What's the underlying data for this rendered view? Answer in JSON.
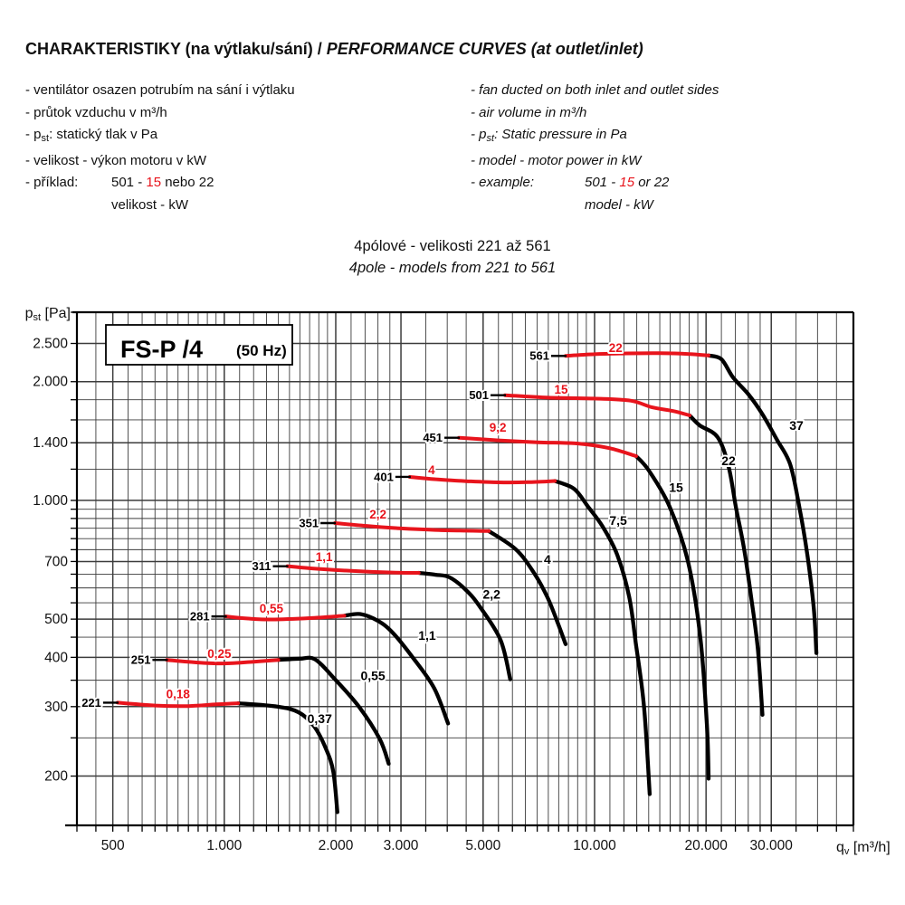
{
  "header": {
    "title_cz": "CHARAKTERISTIKY (na výtlaku/sání)",
    "title_sep": " / ",
    "title_en": "PERFORMANCE CURVES (at outlet/inlet)"
  },
  "notes": {
    "cz": {
      "items": [
        {
          "text": "- ventilátor osazen potrubím na sání i výtlaku"
        },
        {
          "text": "- průtok vzduchu v m³/h"
        },
        {
          "pre": "- p",
          "sub": "st",
          "post": ": statický tlak v Pa"
        },
        {
          "text": "- velikost - výkon motoru v kW"
        }
      ],
      "example": {
        "label": "- příklad:",
        "pre": "501 - ",
        "red": "15",
        "post": " nebo 22",
        "line2": "velikost - kW"
      }
    },
    "en": {
      "items": [
        {
          "text": "- fan ducted on both inlet and outlet sides"
        },
        {
          "text": "- air volume in m³/h"
        },
        {
          "pre": "- p",
          "sub": "st",
          "post": ": Static pressure in Pa"
        },
        {
          "text": "- model - motor power in kW"
        }
      ],
      "example": {
        "label": "- example:",
        "pre": "501 - ",
        "red": "15",
        "post": " or 22",
        "line2": "model - kW"
      }
    }
  },
  "subtitle": {
    "cz": "4pólové - velikosti 221 až 561",
    "en": "4pole - models from 221 to 561"
  },
  "chart_data": {
    "type": "line",
    "title_box": {
      "main": "FS-P /4",
      "sub": "(50 Hz)"
    },
    "colors": {
      "red": "#e8141c",
      "black": "#000000",
      "grid": "#3c3c3c"
    },
    "x_axis": {
      "label_pre": "q",
      "label_sub": "v",
      "label_post": " [m³/h]",
      "range": [
        400,
        50000
      ],
      "ticks": [
        {
          "v": 500,
          "t": "500"
        },
        {
          "v": 1000,
          "t": "1.000"
        },
        {
          "v": 2000,
          "t": "2.000"
        },
        {
          "v": 3000,
          "t": "3.000"
        },
        {
          "v": 5000,
          "t": "5.000"
        },
        {
          "v": 10000,
          "t": "10.000"
        },
        {
          "v": 20000,
          "t": "20.000"
        },
        {
          "v": 30000,
          "t": "30.000"
        }
      ],
      "grid": [
        400,
        450,
        500,
        550,
        600,
        650,
        700,
        750,
        800,
        850,
        900,
        950,
        1000,
        1100,
        1200,
        1300,
        1400,
        1500,
        1600,
        1700,
        1800,
        1900,
        2000,
        2200,
        2400,
        2600,
        2800,
        3000,
        3500,
        4000,
        4500,
        5000,
        5500,
        6000,
        6500,
        7000,
        7500,
        8000,
        8500,
        9000,
        9500,
        10000,
        11000,
        12000,
        13000,
        14000,
        15000,
        16000,
        17000,
        18000,
        19000,
        20000,
        22000,
        24000,
        26000,
        28000,
        30000,
        35000,
        40000,
        45000,
        50000
      ]
    },
    "y_axis": {
      "label_pre": "p",
      "label_sub": "st",
      "label_post": " [Pa]",
      "range": [
        150,
        3000
      ],
      "ticks": [
        {
          "v": 200,
          "t": "200"
        },
        {
          "v": 300,
          "t": "300"
        },
        {
          "v": 400,
          "t": "400"
        },
        {
          "v": 500,
          "t": "500"
        },
        {
          "v": 700,
          "t": "700"
        },
        {
          "v": 1000,
          "t": "1.000"
        },
        {
          "v": 1400,
          "t": "1.400"
        },
        {
          "v": 2000,
          "t": "2.000"
        },
        {
          "v": 2500,
          "t": "2.500"
        }
      ],
      "grid": [
        150,
        200,
        250,
        300,
        350,
        400,
        450,
        500,
        550,
        600,
        650,
        700,
        750,
        800,
        850,
        900,
        950,
        1000,
        1200,
        1400,
        1600,
        1800,
        2000,
        2500,
        3000
      ]
    },
    "series": [
      {
        "model": "221",
        "power_red": "0,18",
        "power_black": "0,37",
        "red": [
          [
            515,
            307
          ],
          [
            650,
            302
          ],
          [
            800,
            301
          ],
          [
            950,
            304
          ],
          [
            1090,
            306
          ]
        ],
        "black": [
          [
            1090,
            306
          ],
          [
            1390,
            300
          ],
          [
            1590,
            290
          ],
          [
            1750,
            267
          ],
          [
            1880,
            235
          ],
          [
            1970,
            205
          ],
          [
            2020,
            162
          ]
        ],
        "red_label": [
          750,
          315
        ],
        "black_label": [
          1810,
          280
        ]
      },
      {
        "model": "251",
        "power_red": "0,25",
        "power_black": "0,55",
        "red": [
          [
            700,
            394
          ],
          [
            850,
            388
          ],
          [
            1000,
            386
          ],
          [
            1200,
            390
          ],
          [
            1400,
            394
          ]
        ],
        "black": [
          [
            1400,
            394
          ],
          [
            1600,
            397
          ],
          [
            1760,
            395
          ],
          [
            1990,
            352
          ],
          [
            2310,
            300
          ],
          [
            2630,
            248
          ],
          [
            2780,
            215
          ]
        ],
        "red_label": [
          970,
          399
        ],
        "black_label": [
          2520,
          360
        ]
      },
      {
        "model": "281",
        "power_red": "0,55",
        "power_black": "1,1",
        "red": [
          [
            1010,
            508
          ],
          [
            1150,
            502
          ],
          [
            1340,
            499
          ],
          [
            1700,
            503
          ],
          [
            2110,
            510
          ]
        ],
        "black": [
          [
            2110,
            510
          ],
          [
            2330,
            515
          ],
          [
            2600,
            495
          ],
          [
            2850,
            462
          ],
          [
            3240,
            398
          ],
          [
            3690,
            334
          ],
          [
            4020,
            272
          ]
        ],
        "red_label": [
          1340,
          519
        ],
        "black_label": [
          3530,
          455
        ]
      },
      {
        "model": "311",
        "power_red": "1,1",
        "power_black": "2,2",
        "red": [
          [
            1480,
            681
          ],
          [
            1700,
            673
          ],
          [
            2000,
            666
          ],
          [
            2500,
            659
          ],
          [
            2900,
            656
          ],
          [
            3350,
            655
          ]
        ],
        "black": [
          [
            3350,
            655
          ],
          [
            3720,
            648
          ],
          [
            4060,
            638
          ],
          [
            4500,
            592
          ],
          [
            4890,
            539
          ],
          [
            5570,
            443
          ],
          [
            5920,
            352
          ]
        ],
        "red_label": [
          1860,
          702
        ],
        "black_label": [
          5270,
          578
        ]
      },
      {
        "model": "351",
        "power_red": "2,2",
        "power_black": "4",
        "red": [
          [
            1990,
            876
          ],
          [
            2400,
            862
          ],
          [
            2900,
            851
          ],
          [
            3800,
            841
          ],
          [
            5180,
            836
          ]
        ],
        "black": [
          [
            5180,
            836
          ],
          [
            6130,
            751
          ],
          [
            6860,
            655
          ],
          [
            7460,
            568
          ],
          [
            7980,
            485
          ],
          [
            8350,
            432
          ]
        ],
        "red_label": [
          2600,
          900
        ],
        "black_label": [
          7460,
          710
        ]
      },
      {
        "model": "401",
        "power_red": "4",
        "power_black": "7,5",
        "red": [
          [
            3170,
            1147
          ],
          [
            3700,
            1132
          ],
          [
            4500,
            1119
          ],
          [
            5500,
            1111
          ],
          [
            6600,
            1112
          ],
          [
            7810,
            1120
          ]
        ],
        "black": [
          [
            7810,
            1120
          ],
          [
            8800,
            1070
          ],
          [
            9610,
            963
          ],
          [
            10500,
            860
          ],
          [
            11510,
            728
          ],
          [
            12400,
            570
          ],
          [
            12920,
            435
          ],
          [
            13600,
            300
          ],
          [
            14090,
            180
          ]
        ],
        "red_label": [
          3630,
          1165
        ],
        "black_label": [
          11580,
          890
        ]
      },
      {
        "model": "451",
        "power_red": "9,2",
        "power_black": "15",
        "red": [
          [
            4300,
            1442
          ],
          [
            5500,
            1420
          ],
          [
            7000,
            1404
          ],
          [
            9090,
            1393
          ],
          [
            11000,
            1356
          ],
          [
            12950,
            1295
          ]
        ],
        "black": [
          [
            12950,
            1295
          ],
          [
            14020,
            1190
          ],
          [
            15950,
            963
          ],
          [
            17870,
            700
          ],
          [
            19300,
            450
          ],
          [
            20100,
            270
          ],
          [
            20320,
            197
          ]
        ],
        "red_label": [
          5480,
          1494
        ],
        "black_label": [
          16600,
          1080
        ]
      },
      {
        "model": "501",
        "power_red": "15",
        "power_black": "22",
        "red": [
          [
            5730,
            1848
          ],
          [
            7500,
            1822
          ],
          [
            10000,
            1812
          ],
          [
            12500,
            1790
          ],
          [
            14300,
            1722
          ],
          [
            16300,
            1685
          ],
          [
            18060,
            1643
          ]
        ],
        "black": [
          [
            18060,
            1643
          ],
          [
            19220,
            1550
          ],
          [
            21500,
            1446
          ],
          [
            23000,
            1220
          ],
          [
            24070,
            963
          ],
          [
            25300,
            760
          ],
          [
            26480,
            568
          ],
          [
            27600,
            420
          ],
          [
            28400,
            286
          ]
        ],
        "red_label": [
          8120,
          1865
        ],
        "black_label": [
          23000,
          1260
        ]
      },
      {
        "model": "561",
        "power_red": "22",
        "power_black": "37",
        "red": [
          [
            8350,
            2325
          ],
          [
            10000,
            2348
          ],
          [
            12000,
            2358
          ],
          [
            15000,
            2362
          ],
          [
            18000,
            2350
          ],
          [
            20320,
            2330
          ]
        ],
        "black": [
          [
            20320,
            2330
          ],
          [
            22000,
            2280
          ],
          [
            23660,
            2050
          ],
          [
            26000,
            1860
          ],
          [
            28330,
            1660
          ],
          [
            31000,
            1430
          ],
          [
            33730,
            1235
          ],
          [
            35720,
            963
          ],
          [
            37600,
            720
          ],
          [
            39100,
            530
          ],
          [
            39710,
            410
          ]
        ],
        "red_label": [
          11400,
          2380
        ],
        "black_label": [
          35080,
          1550
        ]
      }
    ]
  }
}
